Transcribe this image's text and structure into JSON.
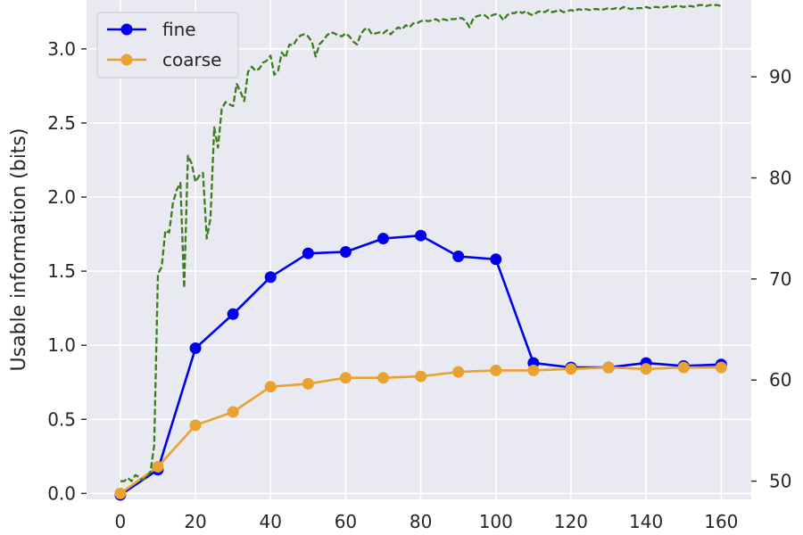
{
  "chart_data": {
    "type": "line",
    "title": "",
    "xlabel": "",
    "ylabel": "Usable information (bits)",
    "y2label": "",
    "xlim": [
      -9,
      168
    ],
    "ylim": [
      -0.04,
      3.33
    ],
    "y2lim": [
      48.2,
      97.6
    ],
    "xticks": [
      0,
      20,
      40,
      60,
      80,
      100,
      120,
      140,
      160
    ],
    "yticks": [
      0.0,
      0.5,
      1.0,
      1.5,
      2.0,
      2.5,
      3.0
    ],
    "y2ticks": [
      50,
      60,
      70,
      80,
      90
    ],
    "grid": true,
    "legend_position": "top-left",
    "background": "#e9e9f1",
    "series": [
      {
        "name": "fine",
        "color": "#0000ee",
        "axis": "left",
        "x": [
          0,
          10,
          20,
          30,
          40,
          50,
          60,
          70,
          80,
          90,
          100,
          110,
          120,
          130,
          140,
          150,
          160
        ],
        "y": [
          -0.01,
          0.16,
          0.98,
          1.21,
          1.46,
          1.62,
          1.63,
          1.72,
          1.74,
          1.6,
          1.58,
          0.88,
          0.85,
          0.85,
          0.88,
          0.86,
          0.87
        ]
      },
      {
        "name": "coarse",
        "color": "#e8a230",
        "axis": "left",
        "x": [
          0,
          10,
          20,
          30,
          40,
          50,
          60,
          70,
          80,
          90,
          100,
          110,
          120,
          130,
          140,
          150,
          160
        ],
        "y": [
          0.0,
          0.18,
          0.46,
          0.55,
          0.72,
          0.74,
          0.78,
          0.78,
          0.79,
          0.82,
          0.83,
          0.83,
          0.84,
          0.85,
          0.84,
          0.85,
          0.85
        ]
      },
      {
        "color": "#3a7d1a",
        "axis": "right",
        "style": "dashed",
        "x": [
          0,
          1,
          2,
          3,
          4,
          5,
          6,
          7,
          8,
          9,
          10,
          11,
          12,
          13,
          14,
          15,
          16,
          17,
          18,
          19,
          20,
          21,
          22,
          23,
          24,
          25,
          26,
          27,
          28,
          29,
          30,
          31,
          32,
          33,
          34,
          35,
          36,
          37,
          38,
          39,
          40,
          41,
          42,
          43,
          44,
          45,
          46,
          47,
          48,
          49,
          50,
          51,
          52,
          53,
          54,
          55,
          56,
          57,
          58,
          59,
          60,
          61,
          62,
          63,
          64,
          65,
          66,
          67,
          68,
          69,
          70,
          71,
          72,
          73,
          74,
          75,
          76,
          77,
          78,
          79,
          80,
          81,
          82,
          83,
          84,
          85,
          86,
          87,
          88,
          89,
          90,
          91,
          92,
          93,
          94,
          95,
          96,
          97,
          98,
          99,
          100,
          101,
          102,
          103,
          104,
          105,
          106,
          107,
          108,
          109,
          110,
          111,
          112,
          113,
          114,
          115,
          116,
          117,
          118,
          119,
          120,
          121,
          122,
          123,
          124,
          125,
          126,
          127,
          128,
          129,
          130,
          131,
          132,
          133,
          134,
          135,
          136,
          137,
          138,
          139,
          140,
          141,
          142,
          143,
          144,
          145,
          146,
          147,
          148,
          149,
          150,
          151,
          152,
          153,
          154,
          155,
          156,
          157,
          158,
          159,
          160
        ],
        "y": [
          50.0,
          50.0,
          50.3,
          50.0,
          50.6,
          50.4,
          50.1,
          50.4,
          50.9,
          53.5,
          70.5,
          71.2,
          74.8,
          74.6,
          77.5,
          78.8,
          79.5,
          69.1,
          82.2,
          81.4,
          79.6,
          80.2,
          80.5,
          74.0,
          76.0,
          85.0,
          83.0,
          86.8,
          87.5,
          87.3,
          87.1,
          89.3,
          88.5,
          87.6,
          90.5,
          91.0,
          90.6,
          90.8,
          91.4,
          91.6,
          92.1,
          90.2,
          90.6,
          92.4,
          91.9,
          93.2,
          93.1,
          93.7,
          94.1,
          94.2,
          94.0,
          93.5,
          92.0,
          93.2,
          93.6,
          94.1,
          94.4,
          94.3,
          94.1,
          94.0,
          94.3,
          94.0,
          93.5,
          93.2,
          94.2,
          94.7,
          94.8,
          94.2,
          94.3,
          94.4,
          94.3,
          94.6,
          94.2,
          94.6,
          94.9,
          94.7,
          95.1,
          94.9,
          95.3,
          95.3,
          95.5,
          95.6,
          95.5,
          95.6,
          95.7,
          95.5,
          95.7,
          95.6,
          95.7,
          95.7,
          95.8,
          95.8,
          95.5,
          94.9,
          95.8,
          96.0,
          96.1,
          96.1,
          95.8,
          96.1,
          96.2,
          96.1,
          95.6,
          96.1,
          96.3,
          96.3,
          96.5,
          96.3,
          96.5,
          96.2,
          96.1,
          96.4,
          96.5,
          96.4,
          96.6,
          96.4,
          96.5,
          96.6,
          96.4,
          96.5,
          96.6,
          96.5,
          96.7,
          96.6,
          96.7,
          96.6,
          96.7,
          96.7,
          96.6,
          96.7,
          96.8,
          96.7,
          96.8,
          96.7,
          96.9,
          96.8,
          96.7,
          96.8,
          96.8,
          96.8,
          96.9,
          96.8,
          96.9,
          96.9,
          96.8,
          96.9,
          97.0,
          96.9,
          97.0,
          97.0,
          96.9,
          97.0,
          97.0,
          96.9,
          97.1,
          97.1,
          97.0,
          97.1,
          97.1,
          97.1,
          97.0
        ]
      }
    ]
  }
}
